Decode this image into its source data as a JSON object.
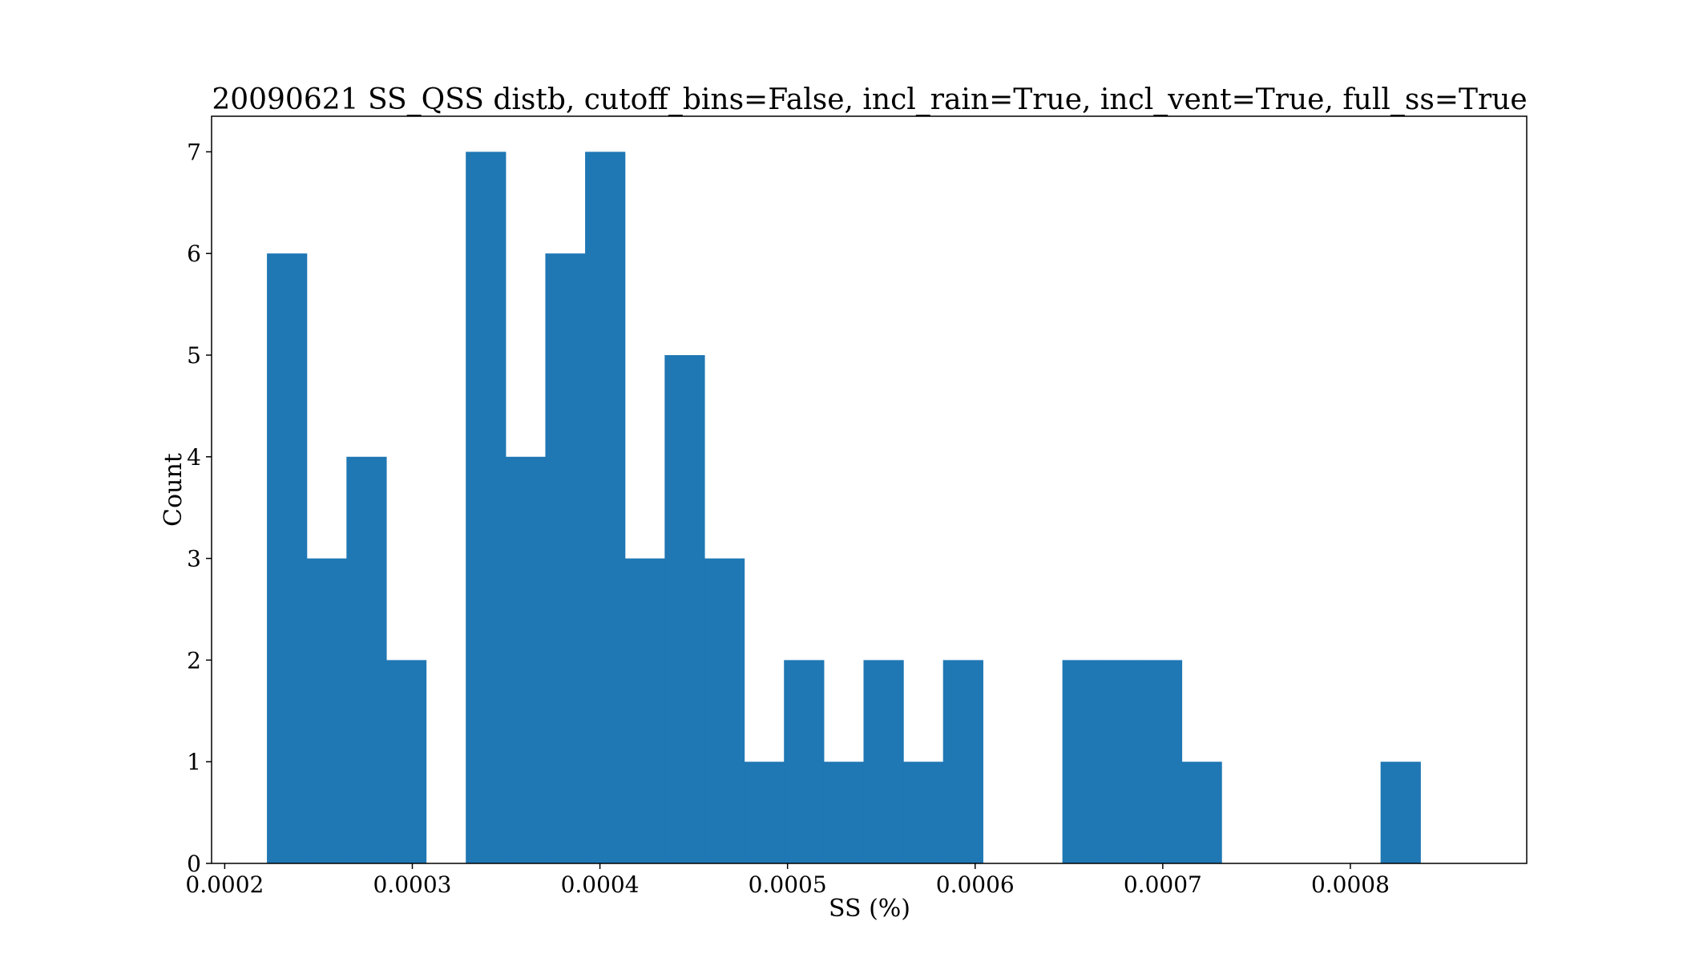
{
  "chart_data": {
    "type": "bar",
    "title": "20090621 SS_QSS distb, cutoff_bins=False, incl_rain=True, incl_vent=True, full_ss=True",
    "xlabel": "SS (%)",
    "ylabel": "Count",
    "bar_color": "#1f77b4",
    "xlim": [
      0.000193,
      0.000894
    ],
    "ylim": [
      0,
      7.35
    ],
    "xticks": [
      0.0002,
      0.0003,
      0.0004,
      0.0005,
      0.0006,
      0.0007,
      0.0008
    ],
    "xtick_labels": [
      "0.0002",
      "0.0003",
      "0.0004",
      "0.0005",
      "0.0006",
      "0.0007",
      "0.0008"
    ],
    "yticks": [
      0,
      1,
      2,
      3,
      4,
      5,
      6,
      7
    ],
    "ytick_labels": [
      "0",
      "1",
      "2",
      "3",
      "4",
      "5",
      "6",
      "7"
    ],
    "bin_start": 0.0002225,
    "bin_width": 2.12e-05,
    "counts": [
      6,
      3,
      4,
      2,
      0,
      7,
      4,
      6,
      7,
      3,
      5,
      3,
      1,
      2,
      1,
      2,
      1,
      2,
      0,
      0,
      2,
      2,
      2,
      1,
      0,
      0,
      0,
      0,
      1
    ],
    "grid": false,
    "legend": "none"
  }
}
